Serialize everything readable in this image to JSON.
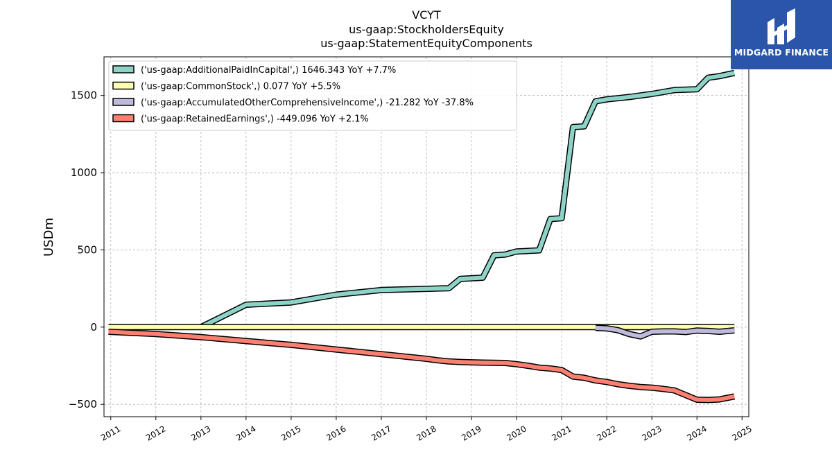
{
  "chart_data": {
    "type": "line",
    "title_lines": [
      "VCYT",
      "us-gaap:StockholdersEquity",
      "us-gaap:StatementEquityComponents"
    ],
    "xlabel": "",
    "ylabel": "USDm",
    "xlim": [
      2010.85,
      2025.15
    ],
    "ylim": [
      -580,
      1750
    ],
    "yticks": [
      -500,
      0,
      500,
      1000,
      1500
    ],
    "ytick_labels": [
      "−500",
      "0",
      "500",
      "1000",
      "1500"
    ],
    "xticks": [
      2011,
      2012,
      2013,
      2014,
      2015,
      2016,
      2017,
      2018,
      2019,
      2020,
      2021,
      2022,
      2023,
      2024,
      2025
    ],
    "xtick_labels": [
      "2011",
      "2012",
      "2013",
      "2014",
      "2015",
      "2016",
      "2017",
      "2018",
      "2019",
      "2020",
      "2021",
      "2022",
      "2023",
      "2024",
      "2025"
    ],
    "grid": true,
    "legend_position": "top-left",
    "series": [
      {
        "name": "('us-gaap:AdditionalPaidInCapital',) 1646.343 YoY +7.7%",
        "color": "#8dd3c7",
        "x": [
          2013.0,
          2014.0,
          2015.0,
          2016.0,
          2017.0,
          2018.0,
          2018.5,
          2018.75,
          2019.25,
          2019.5,
          2019.75,
          2020.0,
          2020.5,
          2020.75,
          2021.0,
          2021.25,
          2021.5,
          2021.75,
          2022.0,
          2022.5,
          2023.0,
          2023.5,
          2024.0,
          2024.25,
          2024.5,
          2024.83
        ],
        "y": [
          0,
          145,
          160,
          210,
          240,
          248,
          252,
          312,
          320,
          465,
          470,
          490,
          497,
          700,
          705,
          1295,
          1300,
          1462,
          1475,
          1490,
          1510,
          1535,
          1540,
          1615,
          1625,
          1646
        ]
      },
      {
        "name": "('us-gaap:CommonStock',) 0.077 YoY +5.5%",
        "color": "#ffffb3",
        "x": [
          2010.95,
          2024.83
        ],
        "y": [
          0,
          0
        ]
      },
      {
        "name": "('us-gaap:AccumulatedOtherComprehensiveIncome',) -21.282 YoY -37.8%",
        "color": "#bebada",
        "x": [
          2021.75,
          2022.0,
          2022.25,
          2022.5,
          2022.75,
          2023.0,
          2023.25,
          2023.5,
          2023.75,
          2024.0,
          2024.25,
          2024.5,
          2024.83
        ],
        "y": [
          -5,
          -8,
          -20,
          -45,
          -60,
          -30,
          -28,
          -28,
          -32,
          -22,
          -25,
          -30,
          -21
        ]
      },
      {
        "name": "('us-gaap:RetainedEarnings',) -449.096 YoY +2.1%",
        "color": "#fb8072",
        "x": [
          2010.95,
          2012.0,
          2013.0,
          2014.0,
          2015.0,
          2016.0,
          2017.0,
          2018.0,
          2018.25,
          2018.5,
          2018.75,
          2019.0,
          2019.25,
          2019.5,
          2019.75,
          2020.0,
          2020.25,
          2020.5,
          2020.75,
          2021.0,
          2021.25,
          2021.5,
          2021.75,
          2022.0,
          2022.25,
          2022.5,
          2022.75,
          2023.0,
          2023.25,
          2023.5,
          2023.75,
          2024.0,
          2024.25,
          2024.5,
          2024.83
        ],
        "y": [
          -30,
          -45,
          -65,
          -90,
          -115,
          -145,
          -175,
          -205,
          -215,
          -222,
          -226,
          -228,
          -230,
          -231,
          -232,
          -240,
          -250,
          -262,
          -268,
          -278,
          -320,
          -328,
          -345,
          -355,
          -370,
          -380,
          -388,
          -392,
          -400,
          -410,
          -440,
          -470,
          -472,
          -468,
          -449
        ]
      }
    ]
  },
  "logo": {
    "text": "MIDGARD FINANCE",
    "color": "#2a55a8"
  }
}
